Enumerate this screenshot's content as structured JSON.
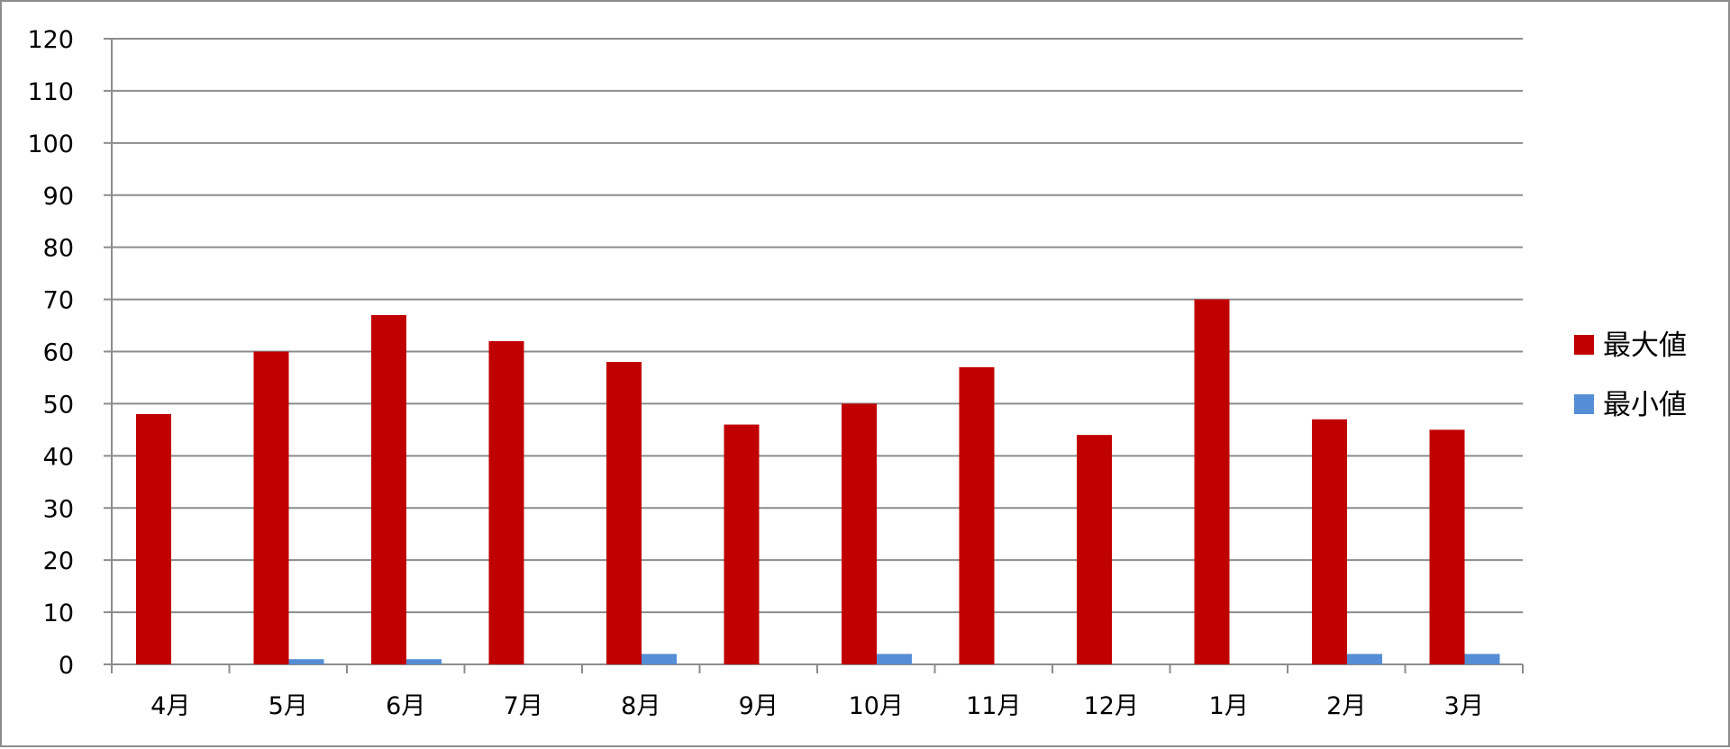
{
  "chart_data": {
    "type": "bar",
    "categories": [
      "4月",
      "5月",
      "6月",
      "7月",
      "8月",
      "9月",
      "10月",
      "11月",
      "12月",
      "1月",
      "2月",
      "3月"
    ],
    "series": [
      {
        "name": "最大値",
        "color": "#c00000",
        "values": [
          48,
          60,
          67,
          62,
          58,
          46,
          50,
          57,
          44,
          70,
          47,
          45
        ]
      },
      {
        "name": "最小値",
        "color": "#558ed5",
        "values": [
          0,
          1,
          1,
          0,
          2,
          0,
          2,
          0,
          0,
          0,
          2,
          2
        ]
      }
    ],
    "ylim": [
      0,
      120
    ],
    "y_ticks": [
      0,
      10,
      20,
      30,
      40,
      50,
      60,
      70,
      80,
      90,
      100,
      110,
      120
    ],
    "grid": true,
    "legend_position": "right",
    "title": "",
    "xlabel": "",
    "ylabel": ""
  }
}
